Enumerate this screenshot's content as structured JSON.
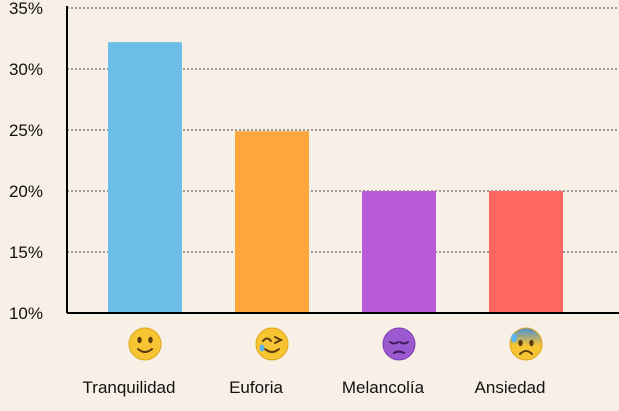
{
  "chart_data": {
    "type": "bar",
    "title": "",
    "xlabel": "",
    "ylabel": "",
    "categories": [
      "Tranquilidad",
      "Euforia",
      "Melancolía",
      "Ansiedad"
    ],
    "values": [
      32.2,
      24.9,
      20.0,
      20.0
    ],
    "category_icons": [
      "slightly-smiling-face-icon",
      "smiling-face-with-tear-icon",
      "pensive-purple-face-icon",
      "anxious-face-with-sweat-icon"
    ],
    "colors": [
      "#6cbde8",
      "#fea63e",
      "#b75bd9",
      "#fe6660"
    ],
    "ylim": [
      10,
      35
    ],
    "yticks": [
      10,
      15,
      20,
      25,
      30,
      35
    ],
    "ytick_labels": [
      "10%",
      "15%",
      "20%",
      "25%",
      "30%",
      "35%"
    ],
    "grid": true,
    "legend": "none"
  }
}
